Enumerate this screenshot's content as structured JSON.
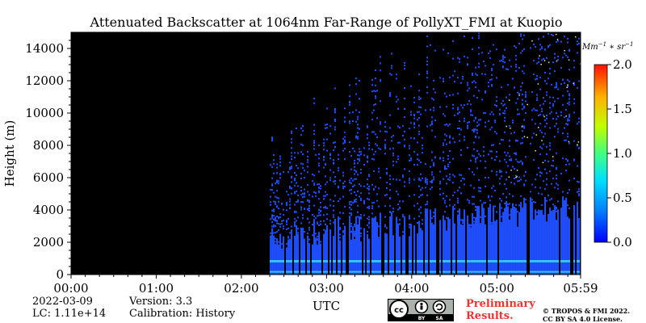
{
  "chart_data": {
    "type": "heatmap",
    "title": "Attenuated Backscatter at 1064nm Far-Range of PollyXT_FMI at Kuopio",
    "xlabel": "UTC",
    "ylabel": "Height (m)",
    "x_ticks": [
      "00:00",
      "01:00",
      "02:00",
      "03:00",
      "04:00",
      "05:00",
      "05:59"
    ],
    "y_ticks": [
      "0",
      "2000",
      "4000",
      "6000",
      "8000",
      "10000",
      "12000",
      "14000"
    ],
    "xlim": [
      "00:00",
      "05:59"
    ],
    "ylim": [
      0,
      15000
    ],
    "colorbar": {
      "label": "Mm^-1 * sr^-1",
      "range": [
        0.0,
        2.0
      ],
      "ticks": [
        "0.0",
        "0.5",
        "1.0",
        "1.5",
        "2.0"
      ],
      "colormap": "jet"
    },
    "data_start": "02:20",
    "data_end": "05:59"
  },
  "footer": {
    "date": "2022-03-09",
    "lc": "LC: 1.11e+14",
    "version": "Version: 3.3",
    "calibration": "Calibration: History",
    "preliminary_line1": "Preliminary",
    "preliminary_line2": "Results.",
    "copyright_line1": "© TROPOS & FMI 2022.",
    "copyright_line2": "CC BY SA 4.0 License.",
    "license_badge": [
      "cc",
      "BY",
      "SA"
    ]
  },
  "colors": {
    "background": "#000000",
    "low_signal": "#1f4fff",
    "aerosol_layer": "#33c8ee"
  }
}
